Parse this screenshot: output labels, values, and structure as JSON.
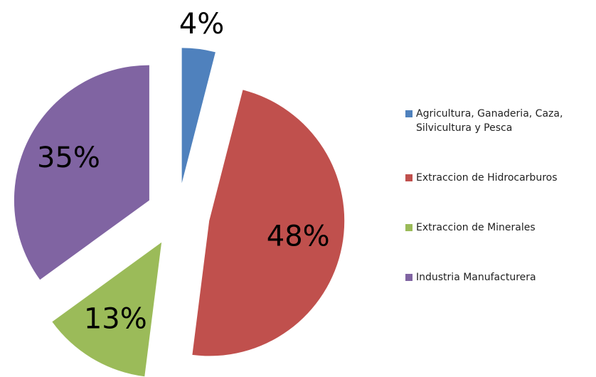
{
  "chart_data": {
    "type": "pie",
    "categories": [
      "Agricultura, Ganaderia, Caza, Silvicultura y Pesca",
      "Extraccion de Hidrocarburos",
      "Extraccion de Minerales",
      "Industria Manufacturera"
    ],
    "values": [
      4,
      48,
      13,
      35
    ],
    "value_labels": [
      "4%",
      "48%",
      "13%",
      "35%"
    ],
    "colors": [
      "#4f81bd",
      "#c0504d",
      "#9bbb59",
      "#8064a2"
    ],
    "legend": "right"
  }
}
